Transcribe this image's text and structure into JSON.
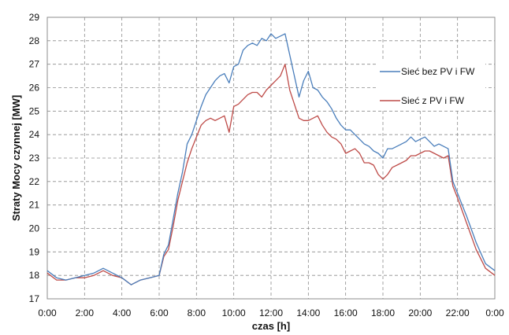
{
  "chart_data": {
    "type": "line",
    "xlabel": "czas [h]",
    "ylabel": "Straty Mocy czynnej [MW]",
    "x_tick_labels": [
      "0:00",
      "2:00",
      "4:00",
      "6:00",
      "8:00",
      "10:00",
      "12:00",
      "14:00",
      "16:00",
      "18:00",
      "20:00",
      "22:00",
      "0:00"
    ],
    "x_hours": [
      0,
      0.5,
      1,
      1.5,
      2,
      2.5,
      3,
      3.5,
      4,
      4.5,
      5,
      5.5,
      6,
      6.25,
      6.5,
      6.75,
      7,
      7.25,
      7.5,
      7.75,
      8,
      8.25,
      8.5,
      8.75,
      9,
      9.25,
      9.5,
      9.75,
      10,
      10.25,
      10.5,
      10.75,
      11,
      11.25,
      11.5,
      11.75,
      12,
      12.25,
      12.5,
      12.75,
      13,
      13.25,
      13.5,
      13.75,
      14,
      14.25,
      14.5,
      14.75,
      15,
      15.25,
      15.5,
      15.75,
      16,
      16.25,
      16.5,
      16.75,
      17,
      17.25,
      17.5,
      17.75,
      18,
      18.25,
      18.5,
      18.75,
      19,
      19.25,
      19.5,
      19.75,
      20,
      20.25,
      20.5,
      20.75,
      21,
      21.25,
      21.5,
      21.75,
      22,
      22.5,
      23,
      23.5,
      24
    ],
    "ylim": [
      17,
      29
    ],
    "yticks": [
      17,
      18,
      19,
      20,
      21,
      22,
      23,
      24,
      25,
      26,
      27,
      28,
      29
    ],
    "grid": "dashed horizontal and vertical",
    "legend_position": "right",
    "series": [
      {
        "name": "Sieć bez PV i FW",
        "color": "#4a7ebb",
        "values": [
          18.2,
          17.9,
          17.8,
          17.9,
          18.0,
          18.1,
          18.3,
          18.1,
          17.9,
          17.6,
          17.8,
          17.9,
          18.0,
          18.9,
          19.3,
          20.4,
          21.5,
          22.4,
          23.6,
          24.0,
          24.6,
          25.2,
          25.7,
          26.0,
          26.3,
          26.5,
          26.6,
          26.2,
          26.9,
          27.0,
          27.6,
          27.8,
          27.9,
          27.8,
          28.1,
          28.0,
          28.3,
          28.1,
          28.2,
          28.3,
          27.4,
          26.5,
          25.6,
          26.3,
          26.7,
          26.0,
          25.9,
          25.6,
          25.4,
          25.1,
          24.7,
          24.4,
          24.2,
          24.2,
          24.0,
          23.8,
          23.6,
          23.5,
          23.3,
          23.2,
          23.0,
          23.4,
          23.4,
          23.5,
          23.6,
          23.7,
          23.9,
          23.7,
          23.8,
          23.9,
          23.7,
          23.5,
          23.6,
          23.5,
          23.4,
          22.0,
          21.5,
          20.5,
          19.4,
          18.5,
          18.2
        ]
      },
      {
        "name": "Sieć z PV i FW",
        "color": "#be4b48",
        "values": [
          18.1,
          17.8,
          17.8,
          17.9,
          17.9,
          18.0,
          18.2,
          18.0,
          17.9,
          17.6,
          17.8,
          17.9,
          18.0,
          18.8,
          19.1,
          20.1,
          21.2,
          22.0,
          22.8,
          23.4,
          23.9,
          24.4,
          24.6,
          24.7,
          24.6,
          24.7,
          24.8,
          24.1,
          25.2,
          25.3,
          25.5,
          25.7,
          25.8,
          25.8,
          25.6,
          25.9,
          26.1,
          26.3,
          26.5,
          27.0,
          25.9,
          25.3,
          24.7,
          24.6,
          24.6,
          24.7,
          24.8,
          24.4,
          24.1,
          23.9,
          23.8,
          23.6,
          23.2,
          23.3,
          23.4,
          23.2,
          22.8,
          22.8,
          22.7,
          22.3,
          22.1,
          22.3,
          22.6,
          22.7,
          22.8,
          22.9,
          23.1,
          23.1,
          23.2,
          23.3,
          23.3,
          23.2,
          23.1,
          23.0,
          23.1,
          21.8,
          21.3,
          20.2,
          19.1,
          18.3,
          18.0
        ]
      }
    ]
  }
}
